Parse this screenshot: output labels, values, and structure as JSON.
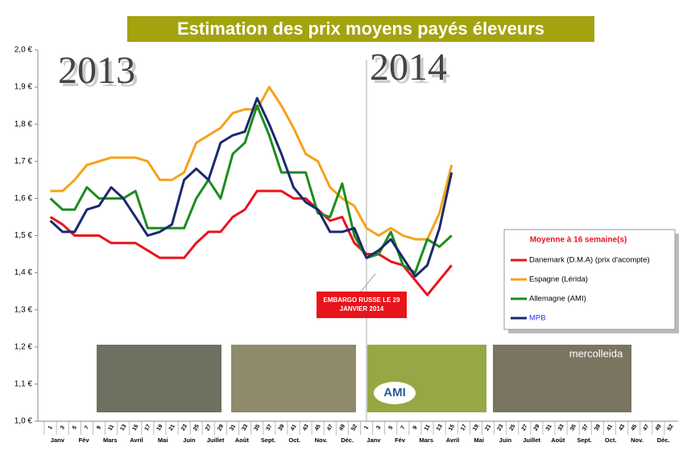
{
  "chart_data": {
    "type": "line",
    "title": "Estimation des prix moyens payés éleveurs",
    "year_labels": [
      "2013",
      "2014"
    ],
    "annotation": "EMBARGO RUSSE LE 29 JANVIER 2014",
    "legend_title": "Moyenne à 16 semaine(s)",
    "photo_captions": [
      "AMI",
      "mercolleida"
    ],
    "categories": [
      "1",
      "3",
      "5",
      "7",
      "9",
      "11",
      "13",
      "15",
      "17",
      "19",
      "21",
      "23",
      "25",
      "27",
      "29",
      "31",
      "33",
      "35",
      "37",
      "39",
      "41",
      "43",
      "45",
      "47",
      "49",
      "52",
      "1",
      "3",
      "5",
      "7",
      "9",
      "11",
      "13",
      "15",
      "17",
      "19",
      "21",
      "23",
      "25",
      "27",
      "29",
      "31",
      "33",
      "35",
      "37",
      "39",
      "41",
      "43",
      "45",
      "47",
      "49",
      "52"
    ],
    "month_labels": [
      "Janv",
      "Fév",
      "Mars",
      "Avril",
      "Mai",
      "Juin",
      "Juillet",
      "Août",
      "Sept.",
      "Oct.",
      "Nov.",
      "Déc.",
      "Janv",
      "Fév",
      "Mars",
      "Avril",
      "Mai",
      "Juin",
      "Juillet",
      "Août",
      "Sept.",
      "Oct.",
      "Nov.",
      "Déc."
    ],
    "ylim": [
      1.0,
      2.0
    ],
    "yticks": [
      {
        "value": 1.0,
        "label": "1,0 €"
      },
      {
        "value": 1.1,
        "label": "1,1 €"
      },
      {
        "value": 1.2,
        "label": "1,2 €"
      },
      {
        "value": 1.3,
        "label": "1,3 €"
      },
      {
        "value": 1.4,
        "label": "1,4 €"
      },
      {
        "value": 1.5,
        "label": "1,5 €"
      },
      {
        "value": 1.6,
        "label": "1,6 €"
      },
      {
        "value": 1.7,
        "label": "1,7 €"
      },
      {
        "value": 1.8,
        "label": "1,8 €"
      },
      {
        "value": 1.9,
        "label": "1,9 €"
      },
      {
        "value": 2.0,
        "label": "2,0 €"
      }
    ],
    "series": [
      {
        "name": "Danemark (D.M.A) (prix d'acompte)",
        "color": "#e8141b",
        "values": [
          1.55,
          1.53,
          1.5,
          1.5,
          1.5,
          1.48,
          1.48,
          1.48,
          1.46,
          1.44,
          1.44,
          1.44,
          1.48,
          1.51,
          1.51,
          1.55,
          1.57,
          1.62,
          1.62,
          1.62,
          1.6,
          1.6,
          1.57,
          1.54,
          1.55,
          1.48,
          1.45,
          1.45,
          1.43,
          1.42,
          1.38,
          1.34,
          1.38,
          1.42,
          null,
          null,
          null,
          null,
          null,
          null,
          null,
          null,
          null,
          null,
          null,
          null,
          null,
          null,
          null,
          null,
          null,
          null
        ]
      },
      {
        "name": "Espagne (Lérida)",
        "color": "#f5a21c",
        "values": [
          1.62,
          1.62,
          1.65,
          1.69,
          1.7,
          1.71,
          1.71,
          1.71,
          1.7,
          1.65,
          1.65,
          1.67,
          1.75,
          1.77,
          1.79,
          1.83,
          1.84,
          1.84,
          1.9,
          1.85,
          1.79,
          1.72,
          1.7,
          1.63,
          1.6,
          1.58,
          1.52,
          1.5,
          1.52,
          1.5,
          1.49,
          1.49,
          1.56,
          1.69,
          null,
          null,
          null,
          null,
          null,
          null,
          null,
          null,
          null,
          null,
          null,
          null,
          null,
          null,
          null,
          null,
          null,
          null
        ]
      },
      {
        "name": "Allemagne (AMI)",
        "color": "#1e8c1e",
        "values": [
          1.6,
          1.57,
          1.57,
          1.63,
          1.6,
          1.6,
          1.6,
          1.62,
          1.52,
          1.52,
          1.52,
          1.52,
          1.6,
          1.65,
          1.6,
          1.72,
          1.75,
          1.85,
          1.77,
          1.67,
          1.67,
          1.67,
          1.56,
          1.55,
          1.64,
          1.5,
          1.44,
          1.45,
          1.51,
          1.42,
          1.4,
          1.49,
          1.47,
          1.5,
          null,
          null,
          null,
          null,
          null,
          null,
          null,
          null,
          null,
          null,
          null,
          null,
          null,
          null,
          null,
          null,
          null,
          null
        ]
      },
      {
        "name": "MPB",
        "color": "#1a2a6c",
        "values": [
          1.54,
          1.51,
          1.51,
          1.57,
          1.58,
          1.63,
          1.6,
          1.55,
          1.5,
          1.51,
          1.53,
          1.65,
          1.68,
          1.65,
          1.75,
          1.77,
          1.78,
          1.87,
          1.8,
          1.72,
          1.63,
          1.59,
          1.57,
          1.51,
          1.51,
          1.52,
          1.44,
          1.46,
          1.49,
          1.44,
          1.39,
          1.42,
          1.52,
          1.67,
          null,
          null,
          null,
          null,
          null,
          null,
          null,
          null,
          null,
          null,
          null,
          null,
          null,
          null,
          null,
          null,
          null,
          null
        ]
      }
    ]
  }
}
